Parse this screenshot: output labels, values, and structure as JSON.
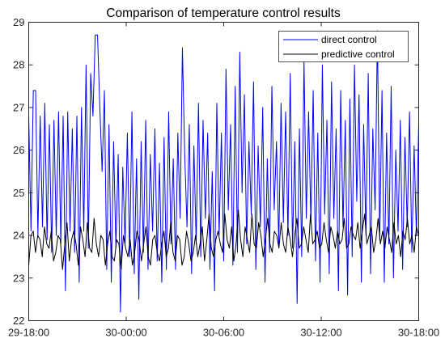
{
  "chart_data": {
    "type": "line",
    "title": "Comparison of temperature control results",
    "xlabel": "",
    "ylabel": "",
    "x_ticks": [
      "29-18:00",
      "30-00:00",
      "30-06:00",
      "30-12:00",
      "30-18:00"
    ],
    "x_range_hours": [
      0,
      24
    ],
    "y_ticks": [
      "22",
      "23",
      "24",
      "25",
      "26",
      "27",
      "28",
      "29"
    ],
    "ylim": [
      22,
      29
    ],
    "grid": false,
    "legend_position": "top-right",
    "series": [
      {
        "name": "direct control",
        "color": "#0000ff",
        "values": [
          26.8,
          24.1,
          27.4,
          27.4,
          24.0,
          26.8,
          24.2,
          27.1,
          23.9,
          26.6,
          23.6,
          26.7,
          24.0,
          26.9,
          23.8,
          26.8,
          22.7,
          26.9,
          24.1,
          26.5,
          23.6,
          26.8,
          22.9,
          27.0,
          24.1,
          28.0,
          23.7,
          27.8,
          26.8,
          28.7,
          28.7,
          27.0,
          25.5,
          27.4,
          23.2,
          26.6,
          22.9,
          26.2,
          23.7,
          25.9,
          22.2,
          25.6,
          23.8,
          26.4,
          23.5,
          26.9,
          23.1,
          25.8,
          22.5,
          26.2,
          23.6,
          26.7,
          23.2,
          25.9,
          24.1,
          26.5,
          23.4,
          25.7,
          22.9,
          26.3,
          23.2,
          26.9,
          23.8,
          25.8,
          23.2,
          26.4,
          24.4,
          28.4,
          25.9,
          24.2,
          26.6,
          23.1,
          26.1,
          23.8,
          27.1,
          23.5,
          26.7,
          24.4,
          26.4,
          23.2,
          25.5,
          22.7,
          27.1,
          24.0,
          26.4,
          23.4,
          27.9,
          24.6,
          26.6,
          23.3,
          27.5,
          23.6,
          28.3,
          25.0,
          27.3,
          23.8,
          26.2,
          24.5,
          27.6,
          23.2,
          26.1,
          24.2,
          27.0,
          22.9,
          25.8,
          23.6,
          27.5,
          24.6,
          26.2,
          23.8,
          27.1,
          24.3,
          26.9,
          24.0,
          27.8,
          23.7,
          26.2,
          22.4,
          26.5,
          23.5,
          28.1,
          24.4,
          26.9,
          24.3,
          27.4,
          23.4,
          26.4,
          22.9,
          28.0,
          24.5,
          26.7,
          23.1,
          27.6,
          24.4,
          26.5,
          22.7,
          27.4,
          24.2,
          26.7,
          22.6,
          27.2,
          23.5,
          28.0,
          24.8,
          27.3,
          22.9,
          26.6,
          24.0,
          27.8,
          23.1,
          26.5,
          24.6,
          28.8,
          23.9,
          27.4,
          22.9,
          26.4,
          23.8,
          27.5,
          23.0,
          26.0,
          24.1,
          26.7,
          23.2,
          26.3,
          24.2,
          26.9,
          23.6,
          26.1,
          24.0,
          26.6
        ]
      },
      {
        "name": "predictive control",
        "color": "#000000",
        "values": [
          23.3,
          24.0,
          24.1,
          23.6,
          24.0,
          23.9,
          23.5,
          24.2,
          23.8,
          23.7,
          24.1,
          23.4,
          23.6,
          24.0,
          23.9,
          23.2,
          23.8,
          24.3,
          23.4,
          23.9,
          24.1,
          23.8,
          23.3,
          24.2,
          23.9,
          23.5,
          24.3,
          23.7,
          23.6,
          24.4,
          23.8,
          23.5,
          24.0,
          23.9,
          23.3,
          23.8,
          24.1,
          23.5,
          23.4,
          23.9,
          23.8,
          23.2,
          24.0,
          23.7,
          23.5,
          23.9,
          23.3,
          23.6,
          24.1,
          23.9,
          23.4,
          23.8,
          24.2,
          23.5,
          23.3,
          23.9,
          24.0,
          23.6,
          23.4,
          23.8,
          24.1,
          23.5,
          23.7,
          24.3,
          23.6,
          23.4,
          24.0,
          23.9,
          23.3,
          23.5,
          24.1,
          23.8,
          23.4,
          23.6,
          24.0,
          23.5,
          23.8,
          24.2,
          23.4,
          23.9,
          24.5,
          23.7,
          23.5,
          23.9,
          24.1,
          23.8,
          23.6,
          24.5,
          23.9,
          23.7,
          24.2,
          23.4,
          23.8,
          24.6,
          23.9,
          23.5,
          24.2,
          23.9,
          23.6,
          24.5,
          23.8,
          23.7,
          24.3,
          24.0,
          23.5,
          23.9,
          24.4,
          23.8,
          23.6,
          24.1,
          24.0,
          23.7,
          24.3,
          23.8,
          23.6,
          24.2,
          23.9,
          23.5,
          24.0,
          24.4,
          23.7,
          23.8,
          24.2,
          23.9,
          23.6,
          24.5,
          23.8,
          23.9,
          24.1,
          23.7,
          23.8,
          24.3,
          23.9,
          23.6,
          24.2,
          24.0,
          23.7,
          24.1,
          23.8,
          23.9,
          24.4,
          23.7,
          23.8,
          24.2,
          24.0,
          23.9,
          24.3,
          23.7,
          24.1,
          24.5,
          23.8,
          24.0,
          24.2,
          23.6,
          23.9,
          24.4,
          23.8,
          24.1,
          23.7,
          24.2,
          23.9,
          23.6,
          24.3,
          23.8,
          24.0,
          23.5,
          24.1,
          23.9,
          24.4,
          23.8,
          24.0,
          23.6,
          24.2,
          24.0
        ]
      }
    ]
  }
}
